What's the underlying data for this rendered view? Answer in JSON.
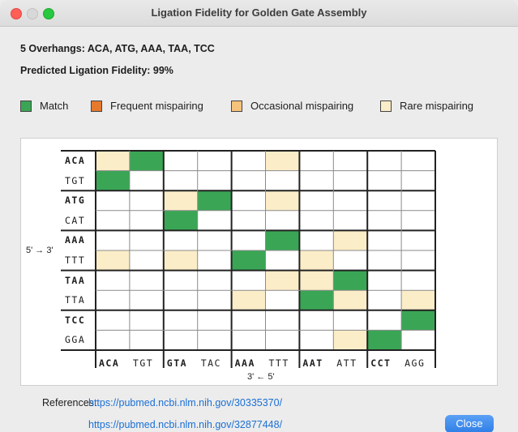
{
  "window": {
    "title": "Ligation Fidelity for Golden Gate Assembly"
  },
  "info": {
    "overhangs": "5 Overhangs:  ACA, ATG, AAA, TAA, TCC",
    "fidelity": "Predicted Ligation Fidelity: 99%"
  },
  "legend": [
    {
      "label": "Match",
      "color": "#3aa655"
    },
    {
      "label": "Frequent mispairing",
      "color": "#e57a2e"
    },
    {
      "label": "Occasional mispairing",
      "color": "#f6c27c"
    },
    {
      "label": "Rare mispairing",
      "color": "#fbedc8"
    }
  ],
  "matrix": {
    "row_labels": [
      "ACA",
      "TGT",
      "ATG",
      "CAT",
      "AAA",
      "TTT",
      "TAA",
      "TTA",
      "TCC",
      "GGA"
    ],
    "col_labels": [
      "ACA",
      "TGT",
      "GTA",
      "TAC",
      "AAA",
      "TTT",
      "AAT",
      "ATT",
      "CCT",
      "AGG"
    ],
    "bold_indices": [
      0,
      2,
      4,
      6,
      8
    ],
    "row_axis_label": "5' → 3'",
    "col_axis_label": "3' ← 5'",
    "color_key": {
      "M": "#3aa655",
      "R": "#fbedc8",
      "W": "#ffffff"
    },
    "cells": [
      [
        "R",
        "M",
        "W",
        "W",
        "W",
        "R",
        "W",
        "W",
        "W",
        "W"
      ],
      [
        "M",
        "W",
        "W",
        "W",
        "W",
        "W",
        "W",
        "W",
        "W",
        "W"
      ],
      [
        "W",
        "W",
        "R",
        "M",
        "W",
        "R",
        "W",
        "W",
        "W",
        "W"
      ],
      [
        "W",
        "W",
        "M",
        "W",
        "W",
        "W",
        "W",
        "W",
        "W",
        "W"
      ],
      [
        "W",
        "W",
        "W",
        "W",
        "W",
        "M",
        "W",
        "R",
        "W",
        "W"
      ],
      [
        "R",
        "W",
        "R",
        "W",
        "M",
        "W",
        "R",
        "W",
        "W",
        "W"
      ],
      [
        "W",
        "W",
        "W",
        "W",
        "W",
        "R",
        "R",
        "M",
        "W",
        "W"
      ],
      [
        "W",
        "W",
        "W",
        "W",
        "R",
        "W",
        "M",
        "R",
        "W",
        "R"
      ],
      [
        "W",
        "W",
        "W",
        "W",
        "W",
        "W",
        "W",
        "W",
        "W",
        "M"
      ],
      [
        "W",
        "W",
        "W",
        "W",
        "W",
        "W",
        "W",
        "R",
        "M",
        "W"
      ]
    ]
  },
  "references": {
    "label": "References:",
    "links": [
      "https://pubmed.ncbi.nlm.nih.gov/30335370/",
      "https://pubmed.ncbi.nlm.nih.gov/32877448/"
    ]
  },
  "buttons": {
    "close": "Close"
  }
}
